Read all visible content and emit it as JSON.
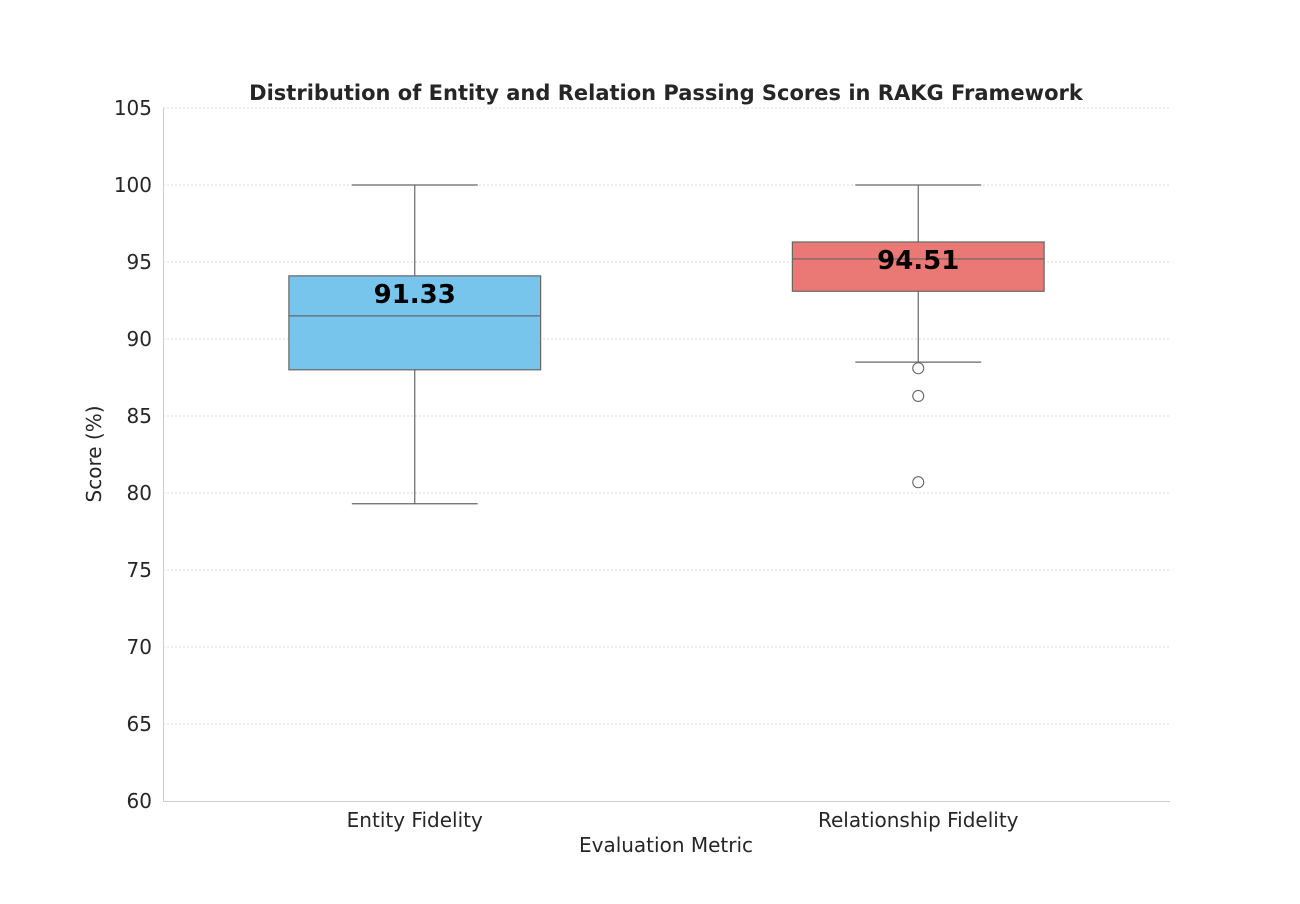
{
  "chart_data": {
    "type": "box",
    "title": "Distribution of Entity and Relation Passing Scores in RAKG Framework",
    "xlabel": "Evaluation Metric",
    "ylabel": "Score (%)",
    "ylim": [
      60,
      105
    ],
    "yticks": [
      "60",
      "65",
      "70",
      "75",
      "80",
      "85",
      "90",
      "95",
      "100",
      "105"
    ],
    "grid": true,
    "categories": [
      "Entity Fidelity",
      "Relationship Fidelity"
    ],
    "boxes": [
      {
        "category": "Entity Fidelity",
        "whisker_low": 79.3,
        "q1": 88.0,
        "median": 91.5,
        "q3": 94.1,
        "whisker_high": 100.0,
        "outliers": [],
        "mean_label": "91.33",
        "color": "#77c5ec"
      },
      {
        "category": "Relationship Fidelity",
        "whisker_low": 88.5,
        "q1": 93.1,
        "median": 95.2,
        "q3": 96.3,
        "whisker_high": 100.0,
        "outliers": [
          88.1,
          86.3,
          80.7
        ],
        "mean_label": "94.51",
        "color": "#ea7875"
      }
    ]
  }
}
